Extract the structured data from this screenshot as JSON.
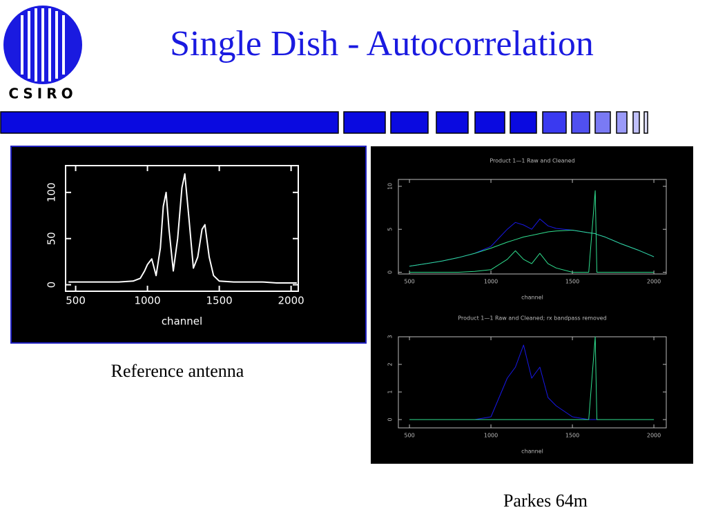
{
  "logo_text": "CSIRO",
  "title": "Single Dish - Autocorrelation",
  "captions": [
    "Reference antenna",
    "Parkes 64m"
  ],
  "chart_data": [
    {
      "type": "line",
      "xlabel": "channel",
      "x": [
        450,
        500,
        600,
        700,
        800,
        900,
        950,
        980,
        1000,
        1030,
        1060,
        1090,
        1110,
        1130,
        1150,
        1180,
        1210,
        1240,
        1260,
        1290,
        1320,
        1350,
        1380,
        1400,
        1430,
        1460,
        1500,
        1600,
        1700,
        1800,
        1900,
        2000,
        2040
      ],
      "series": [
        {
          "color": "#ffffff",
          "values": [
            3,
            3,
            3,
            3,
            3,
            4,
            7,
            15,
            22,
            28,
            10,
            40,
            85,
            100,
            60,
            15,
            50,
            105,
            120,
            70,
            18,
            30,
            60,
            65,
            30,
            10,
            4,
            3,
            3,
            3,
            2,
            2,
            2
          ]
        }
      ],
      "xlim": [
        430,
        2050
      ],
      "ylim": [
        -7,
        129
      ],
      "xticks": [
        500,
        1000,
        1500,
        2000
      ],
      "yticks": [
        0,
        50,
        100
      ]
    },
    {
      "type": "line",
      "title": "Product 1—1 Raw and Cleaned",
      "xlabel": "channel",
      "x": [
        500,
        600,
        700,
        800,
        900,
        1000,
        1100,
        1150,
        1200,
        1250,
        1300,
        1350,
        1400,
        1500,
        1600,
        1640,
        1650,
        1700,
        1800,
        1900,
        2000
      ],
      "series": [
        {
          "color": "#1818e8",
          "values": [
            0.7,
            1.0,
            1.3,
            1.7,
            2.2,
            3.0,
            5.0,
            5.8,
            5.5,
            5.0,
            6.2,
            5.4,
            5.1,
            4.9,
            4.6,
            4.5,
            4.4,
            4.1,
            3.3,
            2.6,
            1.8
          ]
        },
        {
          "color": "#30e090",
          "values": [
            0.7,
            1.0,
            1.3,
            1.7,
            2.2,
            2.8,
            3.5,
            3.8,
            4.1,
            4.3,
            4.5,
            4.7,
            4.8,
            4.9,
            4.6,
            4.5,
            4.4,
            4.1,
            3.3,
            2.6,
            1.8
          ]
        },
        {
          "color": "#30e090",
          "values": [
            0,
            0,
            0,
            0,
            0.1,
            0.3,
            1.5,
            2.5,
            1.5,
            1.0,
            2.2,
            1.0,
            0.5,
            0,
            0,
            9.5,
            0,
            0,
            0,
            0,
            0
          ]
        }
      ],
      "xlim": [
        432,
        2076
      ],
      "ylim": [
        -0.2,
        10.8
      ],
      "xticks": [
        500,
        1000,
        1500,
        2000
      ],
      "yticks": [
        0,
        5,
        10
      ]
    },
    {
      "type": "line",
      "title": "Product 1—1 Raw and Cleaned; rx bandpass removed",
      "xlabel": "channel",
      "x": [
        500,
        600,
        700,
        800,
        900,
        1000,
        1100,
        1150,
        1200,
        1250,
        1300,
        1350,
        1400,
        1500,
        1600,
        1640,
        1650,
        1700,
        1800,
        1900,
        2000
      ],
      "series": [
        {
          "color": "#1818e8",
          "values": [
            0,
            0,
            0,
            0,
            0,
            0.1,
            1.5,
            1.9,
            2.7,
            1.5,
            1.9,
            0.8,
            0.5,
            0.1,
            0,
            0,
            0,
            0,
            0,
            0,
            0
          ]
        },
        {
          "color": "#30e090",
          "values": [
            0,
            0,
            0,
            0,
            0,
            0,
            0,
            0,
            0,
            0,
            0,
            0,
            0,
            0,
            0,
            3.0,
            0,
            0,
            0,
            0,
            0
          ]
        }
      ],
      "xlim": [
        432,
        2076
      ],
      "ylim": [
        -0.3,
        3
      ],
      "xticks": [
        500,
        1000,
        1500,
        2000
      ],
      "yticks": [
        0,
        1,
        2,
        3
      ]
    }
  ]
}
